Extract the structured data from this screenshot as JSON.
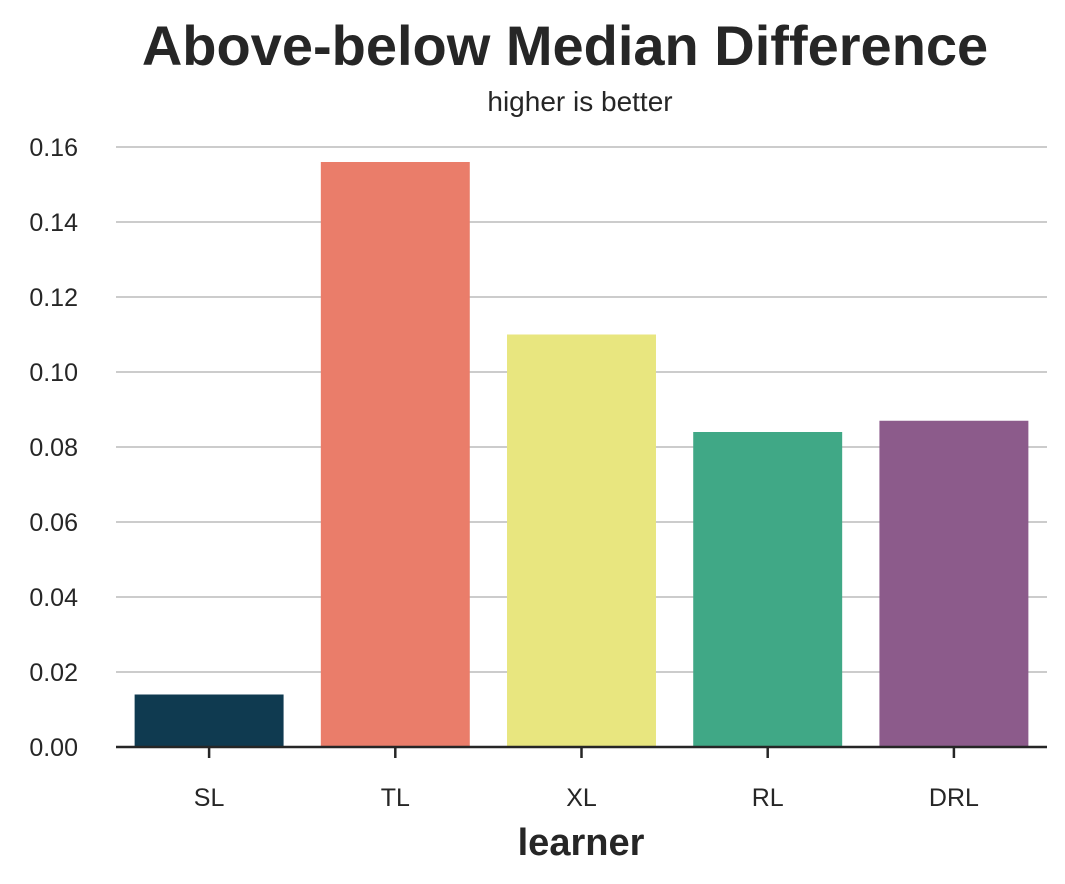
{
  "chart_data": {
    "type": "bar",
    "title": "Above-below Median Difference",
    "subtitle": "higher is better",
    "xlabel": "learner",
    "ylabel": "",
    "categories": [
      "SL",
      "TL",
      "XL",
      "RL",
      "DRL"
    ],
    "values": [
      0.014,
      0.156,
      0.11,
      0.084,
      0.087
    ],
    "colors": [
      "#0f3a50",
      "#ea7d6a",
      "#e8e67f",
      "#40a886",
      "#8c5b8b"
    ],
    "ylim": [
      0,
      0.16
    ],
    "yticks": [
      0.0,
      0.02,
      0.04,
      0.06,
      0.08,
      0.1,
      0.12,
      0.14,
      0.16
    ],
    "ytick_labels": [
      "0.00",
      "0.02",
      "0.04",
      "0.06",
      "0.08",
      "0.10",
      "0.12",
      "0.14",
      "0.16"
    ],
    "grid": "horizontal",
    "legend": "none"
  }
}
